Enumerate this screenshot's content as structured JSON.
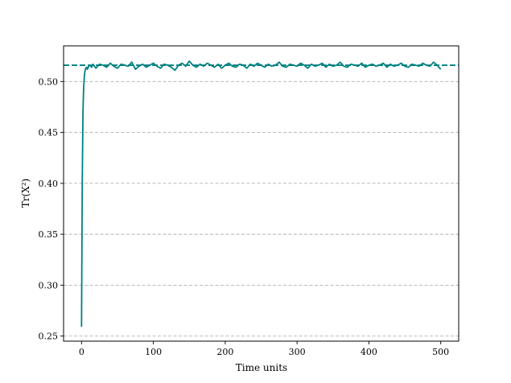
{
  "chart_data": {
    "type": "line",
    "title": "",
    "xlabel": "Time units",
    "ylabel": "Tr(X²)",
    "xlim": [
      -25,
      525
    ],
    "ylim": [
      0.245,
      0.535
    ],
    "xticks": [
      0,
      100,
      200,
      300,
      400,
      500
    ],
    "yticks": [
      0.25,
      0.3,
      0.35,
      0.4,
      0.45,
      0.5
    ],
    "ytick_labels": [
      "0.25",
      "0.30",
      "0.35",
      "0.40",
      "0.45",
      "0.50"
    ],
    "grid": "y-dashed",
    "colors": {
      "line": "#008080",
      "reference": "#008080",
      "grid": "#b0b0b0"
    },
    "series": [
      {
        "style": "solid",
        "x": [
          0,
          1,
          2,
          3,
          4,
          5,
          6,
          7,
          8,
          10,
          12,
          14,
          16,
          18,
          20,
          25,
          30,
          35,
          40,
          45,
          50,
          55,
          60,
          65,
          70,
          75,
          80,
          85,
          90,
          95,
          100,
          105,
          110,
          115,
          120,
          125,
          130,
          135,
          140,
          145,
          150,
          155,
          160,
          165,
          170,
          175,
          180,
          185,
          190,
          195,
          200,
          205,
          210,
          215,
          220,
          225,
          230,
          235,
          240,
          245,
          250,
          255,
          260,
          265,
          270,
          275,
          280,
          285,
          290,
          295,
          300,
          305,
          310,
          315,
          320,
          325,
          330,
          335,
          340,
          345,
          350,
          355,
          360,
          365,
          370,
          375,
          380,
          385,
          390,
          395,
          400,
          405,
          410,
          415,
          420,
          425,
          430,
          435,
          440,
          445,
          450,
          455,
          460,
          465,
          470,
          475,
          480,
          485,
          490,
          495,
          500
        ],
        "y": [
          0.259,
          0.4,
          0.47,
          0.495,
          0.506,
          0.511,
          0.513,
          0.514,
          0.512,
          0.515,
          0.516,
          0.514,
          0.517,
          0.515,
          0.513,
          0.517,
          0.516,
          0.514,
          0.518,
          0.515,
          0.513,
          0.517,
          0.516,
          0.515,
          0.519,
          0.512,
          0.515,
          0.517,
          0.514,
          0.516,
          0.518,
          0.515,
          0.513,
          0.517,
          0.516,
          0.514,
          0.511,
          0.516,
          0.518,
          0.515,
          0.52,
          0.516,
          0.514,
          0.517,
          0.515,
          0.518,
          0.516,
          0.514,
          0.517,
          0.513,
          0.516,
          0.518,
          0.515,
          0.514,
          0.517,
          0.516,
          0.513,
          0.517,
          0.515,
          0.518,
          0.516,
          0.514,
          0.517,
          0.515,
          0.516,
          0.519,
          0.515,
          0.514,
          0.517,
          0.516,
          0.515,
          0.518,
          0.516,
          0.513,
          0.517,
          0.515,
          0.516,
          0.518,
          0.514,
          0.517,
          0.515,
          0.516,
          0.519,
          0.515,
          0.514,
          0.517,
          0.516,
          0.515,
          0.518,
          0.514,
          0.516,
          0.517,
          0.515,
          0.516,
          0.518,
          0.514,
          0.517,
          0.515,
          0.516,
          0.518,
          0.515,
          0.514,
          0.517,
          0.516,
          0.515,
          0.518,
          0.516,
          0.515,
          0.519,
          0.516,
          0.512
        ]
      },
      {
        "style": "dashed",
        "x": [
          -25,
          525
        ],
        "y": [
          0.516,
          0.516
        ]
      }
    ]
  }
}
